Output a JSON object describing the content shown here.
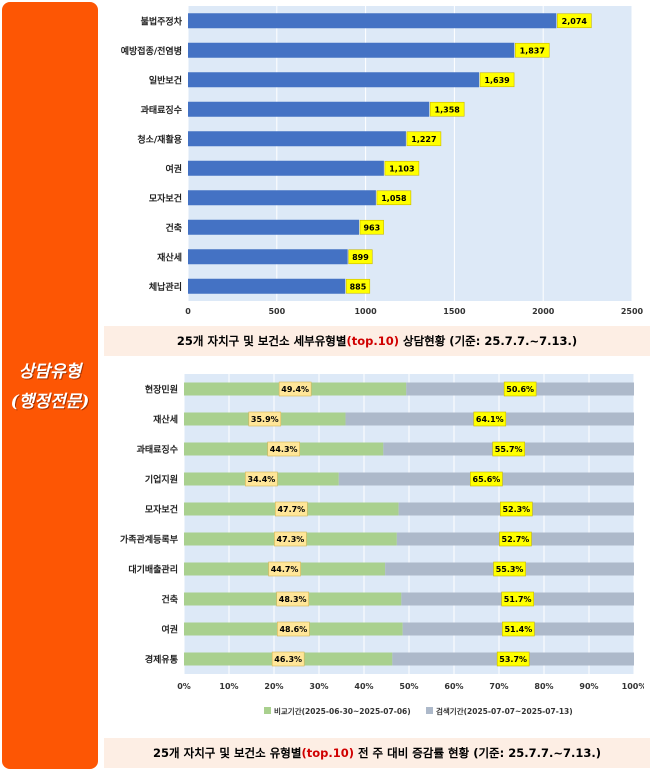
{
  "side_label_lines": [
    "상담유형",
    "(행정전문)"
  ],
  "colors": {
    "side_bg": "#fd5604",
    "bar1": "#4472c4",
    "label_bg": "#ffff00",
    "pct_label_bg": "#ffe699",
    "compare": "#a9d08e",
    "search": "#adb9ca",
    "plot_bg": "#dde9f7"
  },
  "caption1": {
    "pre": "25개 자치구 및 보건소 세부유형별",
    "highlight": "(top.10)",
    "post": " 상담현황 (기준: 25.7.7.~7.13.)"
  },
  "caption2": {
    "pre": "25개 자치구 및 보건소 유형별",
    "highlight": "(top.10)",
    "post": " 전 주 대비 증감률 현황 (기준: 25.7.7.~7.13.)"
  },
  "chart_data": [
    {
      "type": "bar",
      "orientation": "horizontal",
      "categories": [
        "불법주정차",
        "예방접종/전염병",
        "일반보건",
        "과태료징수",
        "청소/재활용",
        "여권",
        "모자보건",
        "건축",
        "재산세",
        "체납관리"
      ],
      "values": [
        2074,
        1837,
        1639,
        1358,
        1227,
        1103,
        1058,
        963,
        899,
        885
      ],
      "value_labels": [
        "2,074",
        "1,837",
        "1,639",
        "1,358",
        "1,227",
        "1,103",
        "1,058",
        "963",
        "899",
        "885"
      ],
      "xlim": [
        0,
        2500
      ],
      "xticks": [
        "0",
        "500",
        "1000",
        "1500",
        "2000",
        "2500"
      ],
      "grid": true
    },
    {
      "type": "bar",
      "orientation": "horizontal",
      "stacked": "percent",
      "categories": [
        "현장민원",
        "재산세",
        "과태료징수",
        "기업지원",
        "모자보건",
        "가족관계등록부",
        "대기배출관리",
        "건축",
        "여권",
        "경제유통"
      ],
      "series": [
        {
          "name": "비교기간(2025-06-30~2025-07-06)",
          "values": [
            49.4,
            35.9,
            44.3,
            34.4,
            47.7,
            47.3,
            44.7,
            48.3,
            48.6,
            46.3
          ],
          "labels": [
            "49.4%",
            "35.9%",
            "44.3%",
            "34.4%",
            "47.7%",
            "47.3%",
            "44.7%",
            "48.3%",
            "48.6%",
            "46.3%"
          ]
        },
        {
          "name": "검색기간(2025-07-07~2025-07-13)",
          "values": [
            50.6,
            64.1,
            55.7,
            65.6,
            52.3,
            52.7,
            55.3,
            51.7,
            51.4,
            53.7
          ],
          "labels": [
            "50.6%",
            "64.1%",
            "55.7%",
            "65.6%",
            "52.3%",
            "52.7%",
            "55.3%",
            "51.7%",
            "51.4%",
            "53.7%"
          ]
        }
      ],
      "xlim": [
        0,
        100
      ],
      "xticks": [
        "0%",
        "10%",
        "20%",
        "30%",
        "40%",
        "50%",
        "60%",
        "70%",
        "80%",
        "90%",
        "100%"
      ],
      "legend": "bottom"
    }
  ]
}
